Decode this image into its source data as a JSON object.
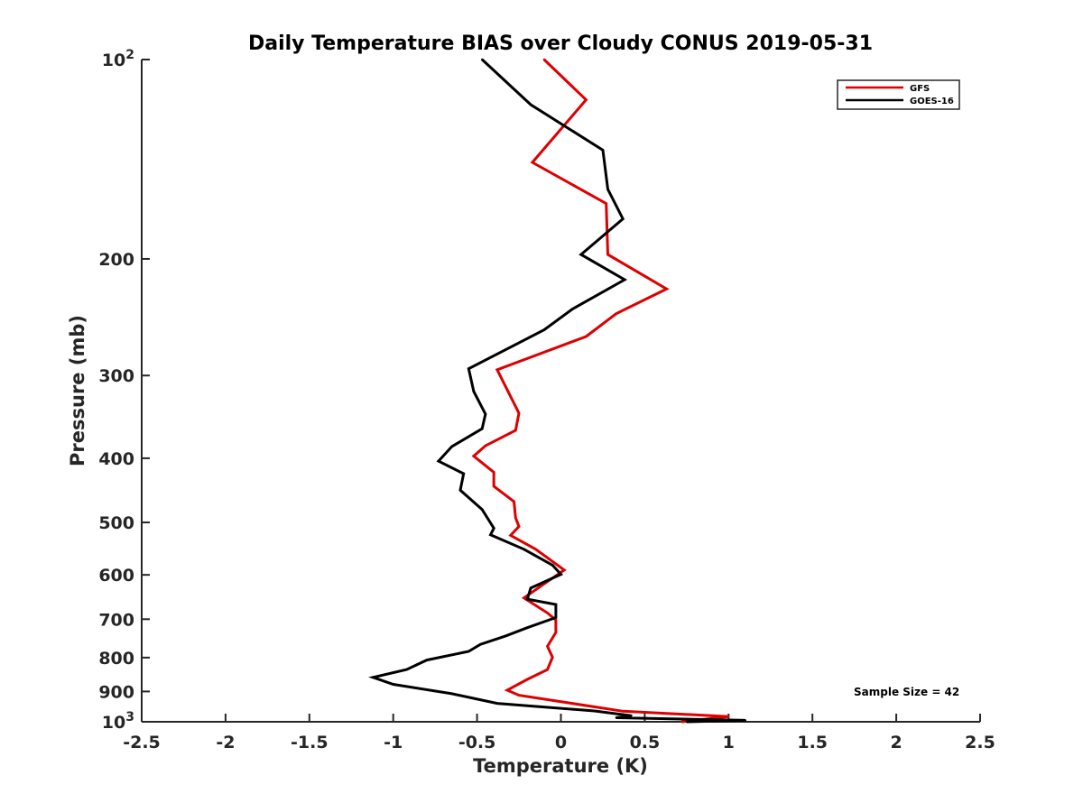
{
  "chart_data": {
    "type": "line",
    "title": "Daily Temperature BIAS over Cloudy CONUS 2019-05-31",
    "xlabel": "Temperature (K)",
    "ylabel": "Pressure (mb)",
    "xlim": [
      -2.5,
      2.5
    ],
    "ylim": [
      100,
      1000
    ],
    "yscale": "log",
    "y_reversed": true,
    "xticks": [
      -2.5,
      -2,
      -1.5,
      -1,
      -0.5,
      0,
      0.5,
      1,
      1.5,
      2,
      2.5
    ],
    "xtick_labels": [
      "-2.5",
      "-2",
      "-1.5",
      "-1",
      "-0.5",
      "0",
      "0.5",
      "1",
      "1.5",
      "2",
      "2.5"
    ],
    "yticks": [
      {
        "value": 100,
        "base": "10",
        "exp": "2"
      },
      {
        "value": 200,
        "label": "200"
      },
      {
        "value": 300,
        "label": "300"
      },
      {
        "value": 400,
        "label": "400"
      },
      {
        "value": 500,
        "label": "500"
      },
      {
        "value": 600,
        "label": "600"
      },
      {
        "value": 700,
        "label": "700"
      },
      {
        "value": 800,
        "label": "800"
      },
      {
        "value": 900,
        "label": "900"
      },
      {
        "value": 1000,
        "base": "10",
        "exp": "3"
      }
    ],
    "legend_position": "top-right",
    "annotation": "Sample Size = 42",
    "series": [
      {
        "name": "GFS",
        "color": "#dd0000",
        "points": [
          [
            -0.1,
            100
          ],
          [
            0.15,
            115
          ],
          [
            -0.17,
            143
          ],
          [
            0.27,
            165
          ],
          [
            0.28,
            197
          ],
          [
            0.63,
            222
          ],
          [
            0.33,
            242
          ],
          [
            0.15,
            262
          ],
          [
            -0.38,
            294
          ],
          [
            -0.25,
            342
          ],
          [
            -0.27,
            363
          ],
          [
            -0.45,
            383
          ],
          [
            -0.52,
            397
          ],
          [
            -0.4,
            420
          ],
          [
            -0.4,
            441
          ],
          [
            -0.28,
            465
          ],
          [
            -0.27,
            492
          ],
          [
            -0.25,
            507
          ],
          [
            -0.3,
            523
          ],
          [
            -0.15,
            549
          ],
          [
            0.02,
            590
          ],
          [
            -0.1,
            619
          ],
          [
            -0.22,
            650
          ],
          [
            -0.08,
            685
          ],
          [
            -0.03,
            702
          ],
          [
            -0.03,
            733
          ],
          [
            -0.08,
            769
          ],
          [
            -0.05,
            799
          ],
          [
            -0.08,
            834
          ],
          [
            -0.2,
            863
          ],
          [
            -0.32,
            896
          ],
          [
            -0.25,
            912
          ],
          [
            0.22,
            951
          ],
          [
            0.37,
            964
          ],
          [
            1.0,
            982
          ],
          [
            0.72,
            1000
          ]
        ]
      },
      {
        "name": "GOES-16",
        "color": "#000000",
        "points": [
          [
            -0.47,
            100
          ],
          [
            -0.18,
            117
          ],
          [
            0.25,
            137
          ],
          [
            0.28,
            157
          ],
          [
            0.37,
            174
          ],
          [
            0.12,
            197
          ],
          [
            0.38,
            215
          ],
          [
            0.07,
            238
          ],
          [
            -0.1,
            256
          ],
          [
            -0.55,
            293
          ],
          [
            -0.52,
            317
          ],
          [
            -0.45,
            343
          ],
          [
            -0.47,
            361
          ],
          [
            -0.65,
            384
          ],
          [
            -0.73,
            404
          ],
          [
            -0.58,
            422
          ],
          [
            -0.6,
            447
          ],
          [
            -0.47,
            478
          ],
          [
            -0.4,
            510
          ],
          [
            -0.42,
            522
          ],
          [
            -0.22,
            549
          ],
          [
            -0.05,
            580
          ],
          [
            0.0,
            599
          ],
          [
            -0.18,
            628
          ],
          [
            -0.2,
            653
          ],
          [
            -0.03,
            665
          ],
          [
            -0.03,
            696
          ],
          [
            -0.2,
            721
          ],
          [
            -0.33,
            742
          ],
          [
            -0.48,
            764
          ],
          [
            -0.55,
            783
          ],
          [
            -0.8,
            807
          ],
          [
            -0.92,
            834
          ],
          [
            -1.12,
            857
          ],
          [
            -1.0,
            878
          ],
          [
            -0.65,
            907
          ],
          [
            -0.38,
            938
          ],
          [
            0.2,
            963
          ],
          [
            0.42,
            979
          ],
          [
            0.33,
            986
          ],
          [
            1.1,
            995
          ],
          [
            0.75,
            1000
          ]
        ]
      }
    ]
  }
}
